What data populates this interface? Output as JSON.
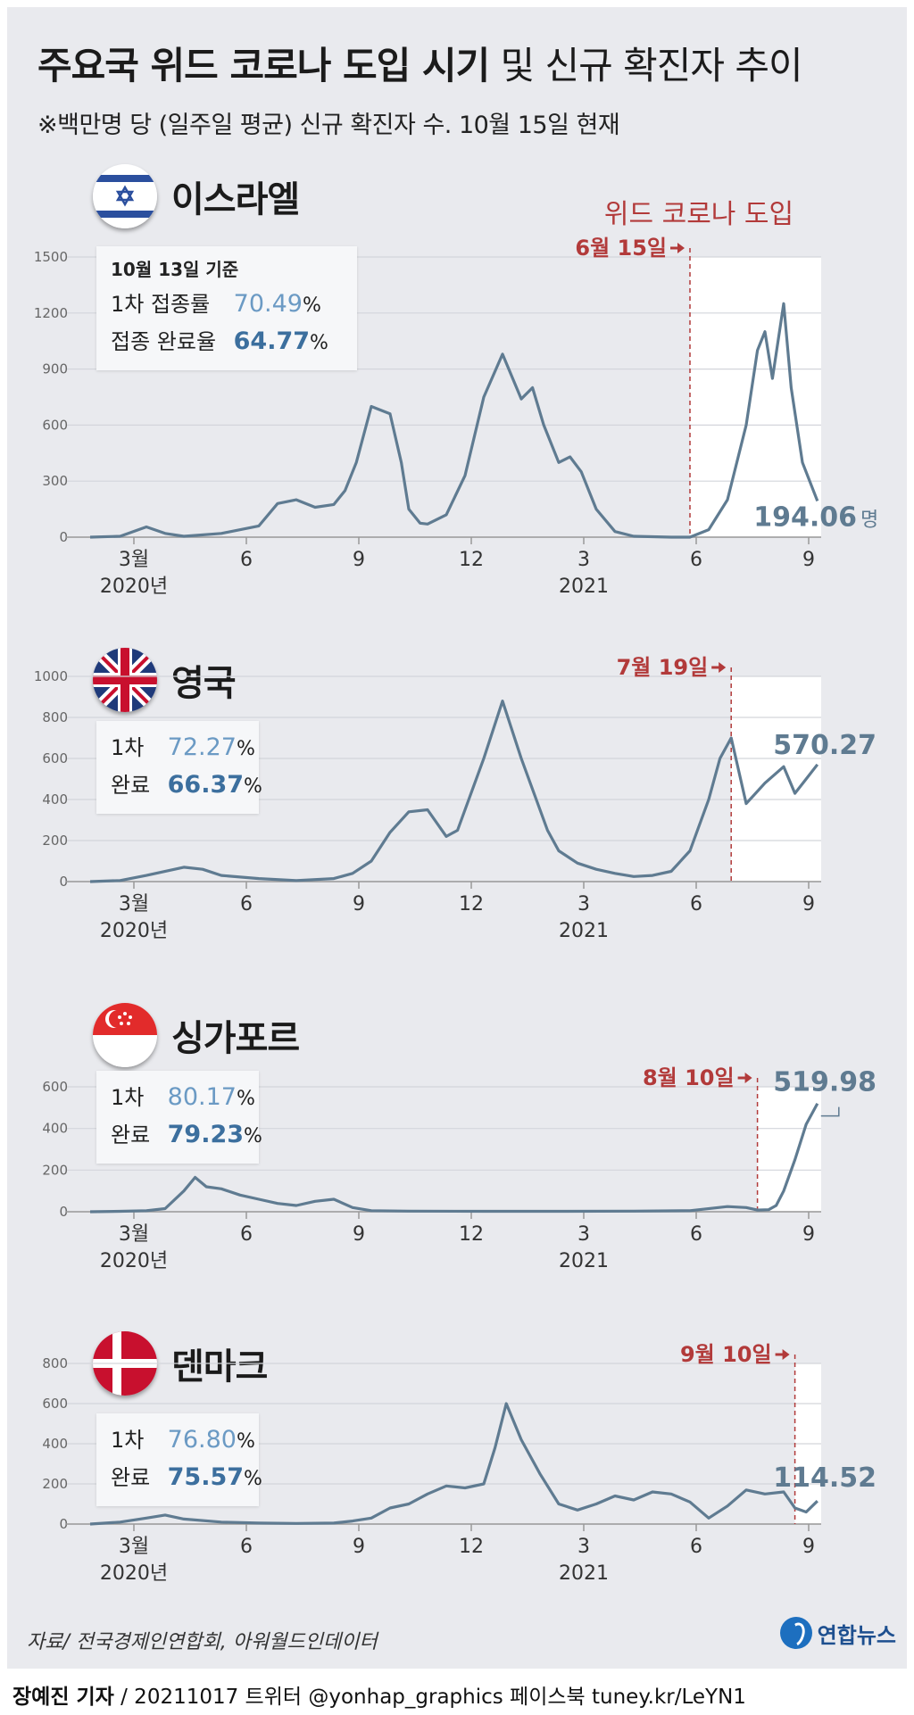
{
  "title": {
    "bold": "주요국 위드 코로나 도입 시기",
    "light": " 및 신규 확진자 추이"
  },
  "subtitle": "※백만명 당 (일주일 평균) 신규 확진자 수. 10월 15일 현재",
  "intro_label": "위드 코로나 도입",
  "x_ticks": [
    "3월",
    "6",
    "9",
    "12",
    "3",
    "6",
    "9"
  ],
  "year_2020": "2020년",
  "year_2021": "2021",
  "colors": {
    "line": "#5f7b91",
    "accent": "#b23a3a",
    "value_light": "#6b9ac4",
    "value_dark": "#3c6f9e"
  },
  "countries": [
    {
      "name": "이스라엘",
      "flag": "israel-flag-icon",
      "vaccine": {
        "date": "10월 13일 기준",
        "first_label": "1차 접종률",
        "first": "70.49",
        "full_label": "접종 완료율",
        "full": "64.77",
        "unit": "%"
      },
      "intro": "6월 15일",
      "final_value": "194.06",
      "final_unit": "명"
    },
    {
      "name": "영국",
      "flag": "uk-flag-icon",
      "vaccine": {
        "date": "",
        "first_label": "1차",
        "first": "72.27",
        "full_label": "완료",
        "full": "66.37",
        "unit": "%"
      },
      "intro": "7월 19일",
      "final_value": "570.27",
      "final_unit": ""
    },
    {
      "name": "싱가포르",
      "flag": "singapore-flag-icon",
      "vaccine": {
        "date": "",
        "first_label": "1차",
        "first": "80.17",
        "full_label": "완료",
        "full": "79.23",
        "unit": "%"
      },
      "intro": "8월 10일",
      "final_value": "519.98",
      "final_unit": ""
    },
    {
      "name": "덴마크",
      "flag": "denmark-flag-icon",
      "vaccine": {
        "date": "",
        "first_label": "1차",
        "first": "76.80",
        "full_label": "완료",
        "full": "75.57",
        "unit": "%"
      },
      "intro": "9월 10일",
      "final_value": "114.52",
      "final_unit": ""
    }
  ],
  "chart_data": [
    {
      "type": "line",
      "title": "이스라엘",
      "x_unit": "months since 2020-01",
      "ylim": [
        0,
        1500
      ],
      "yticks": [
        0,
        300,
        600,
        900,
        1200,
        1500
      ],
      "intro_month": 17.5,
      "x": [
        1.5,
        2.3,
        3.0,
        3.5,
        4.0,
        5.0,
        6.0,
        6.5,
        7.0,
        7.5,
        8.0,
        8.3,
        8.6,
        9.0,
        9.5,
        9.8,
        10.0,
        10.3,
        10.5,
        11.0,
        11.5,
        12.0,
        12.5,
        13.0,
        13.3,
        13.6,
        14.0,
        14.3,
        14.6,
        15.0,
        15.5,
        16.0,
        17.0,
        17.5,
        18.0,
        18.5,
        19.0,
        19.3,
        19.5,
        19.7,
        20.0,
        20.2,
        20.5,
        20.9
      ],
      "y": [
        0,
        5,
        55,
        20,
        5,
        20,
        60,
        180,
        200,
        160,
        175,
        250,
        400,
        700,
        660,
        400,
        150,
        75,
        70,
        120,
        330,
        750,
        980,
        740,
        800,
        600,
        400,
        430,
        350,
        150,
        30,
        5,
        0,
        0,
        40,
        200,
        600,
        1000,
        1100,
        850,
        1250,
        800,
        400,
        194.06
      ]
    },
    {
      "type": "line",
      "title": "영국",
      "x_unit": "months since 2020-01",
      "ylim": [
        0,
        1000
      ],
      "yticks": [
        0,
        200,
        400,
        600,
        800,
        1000
      ],
      "intro_month": 18.6,
      "x": [
        1.5,
        2.3,
        3.0,
        4.0,
        4.5,
        5.0,
        6.0,
        7.0,
        8.0,
        8.5,
        9.0,
        9.5,
        10.0,
        10.5,
        11.0,
        11.3,
        11.6,
        12.0,
        12.5,
        13.0,
        13.4,
        13.7,
        14.0,
        14.5,
        15.0,
        15.5,
        16.0,
        16.5,
        17.0,
        17.5,
        18.0,
        18.3,
        18.6,
        19.0,
        19.5,
        20.0,
        20.3,
        20.6,
        20.9
      ],
      "y": [
        0,
        5,
        30,
        70,
        60,
        30,
        15,
        5,
        15,
        40,
        100,
        240,
        340,
        350,
        220,
        250,
        400,
        600,
        880,
        600,
        400,
        250,
        150,
        90,
        60,
        40,
        25,
        30,
        50,
        150,
        400,
        600,
        700,
        380,
        480,
        560,
        430,
        500,
        570.27
      ]
    },
    {
      "type": "line",
      "title": "싱가포르",
      "x_unit": "months since 2020-01",
      "ylim": [
        0,
        600
      ],
      "yticks": [
        0,
        200,
        400,
        600
      ],
      "intro_month": 19.3,
      "x": [
        1.5,
        2.3,
        3.0,
        3.5,
        4.0,
        4.3,
        4.6,
        5.0,
        5.5,
        6.0,
        6.5,
        7.0,
        7.5,
        8.0,
        8.5,
        9.0,
        10.0,
        12.0,
        14.0,
        16.0,
        17.5,
        18.5,
        19.0,
        19.3,
        19.6,
        19.8,
        20.0,
        20.3,
        20.6,
        20.9
      ],
      "y": [
        0,
        2,
        5,
        15,
        100,
        165,
        120,
        110,
        80,
        60,
        40,
        30,
        50,
        60,
        20,
        5,
        3,
        2,
        2,
        3,
        5,
        25,
        20,
        8,
        10,
        30,
        100,
        250,
        420,
        519.98
      ]
    },
    {
      "type": "line",
      "title": "덴마크",
      "x_unit": "months since 2020-01",
      "ylim": [
        0,
        800
      ],
      "yticks": [
        0,
        200,
        400,
        600,
        800
      ],
      "intro_month": 20.3,
      "x": [
        1.5,
        2.3,
        3.0,
        3.5,
        4.0,
        5.0,
        6.0,
        7.0,
        8.0,
        8.5,
        9.0,
        9.5,
        10.0,
        10.5,
        11.0,
        11.5,
        12.0,
        12.3,
        12.6,
        13.0,
        13.5,
        14.0,
        14.5,
        15.0,
        15.5,
        16.0,
        16.5,
        17.0,
        17.5,
        18.0,
        18.5,
        19.0,
        19.5,
        20.0,
        20.3,
        20.6,
        20.9
      ],
      "y": [
        0,
        10,
        30,
        45,
        25,
        10,
        5,
        3,
        5,
        15,
        30,
        80,
        100,
        150,
        190,
        180,
        200,
        380,
        600,
        420,
        250,
        100,
        70,
        100,
        140,
        120,
        160,
        150,
        110,
        30,
        90,
        170,
        150,
        160,
        80,
        60,
        114.52
      ]
    }
  ],
  "source": "자료/ 전국경제인연합회, 아워월드인데이터",
  "logo": "연합뉴스",
  "footer": {
    "author": "장예진 기자",
    "rest": " / 20211017 트위터 @yonhap_graphics  페이스북 tuney.kr/LeYN1"
  }
}
